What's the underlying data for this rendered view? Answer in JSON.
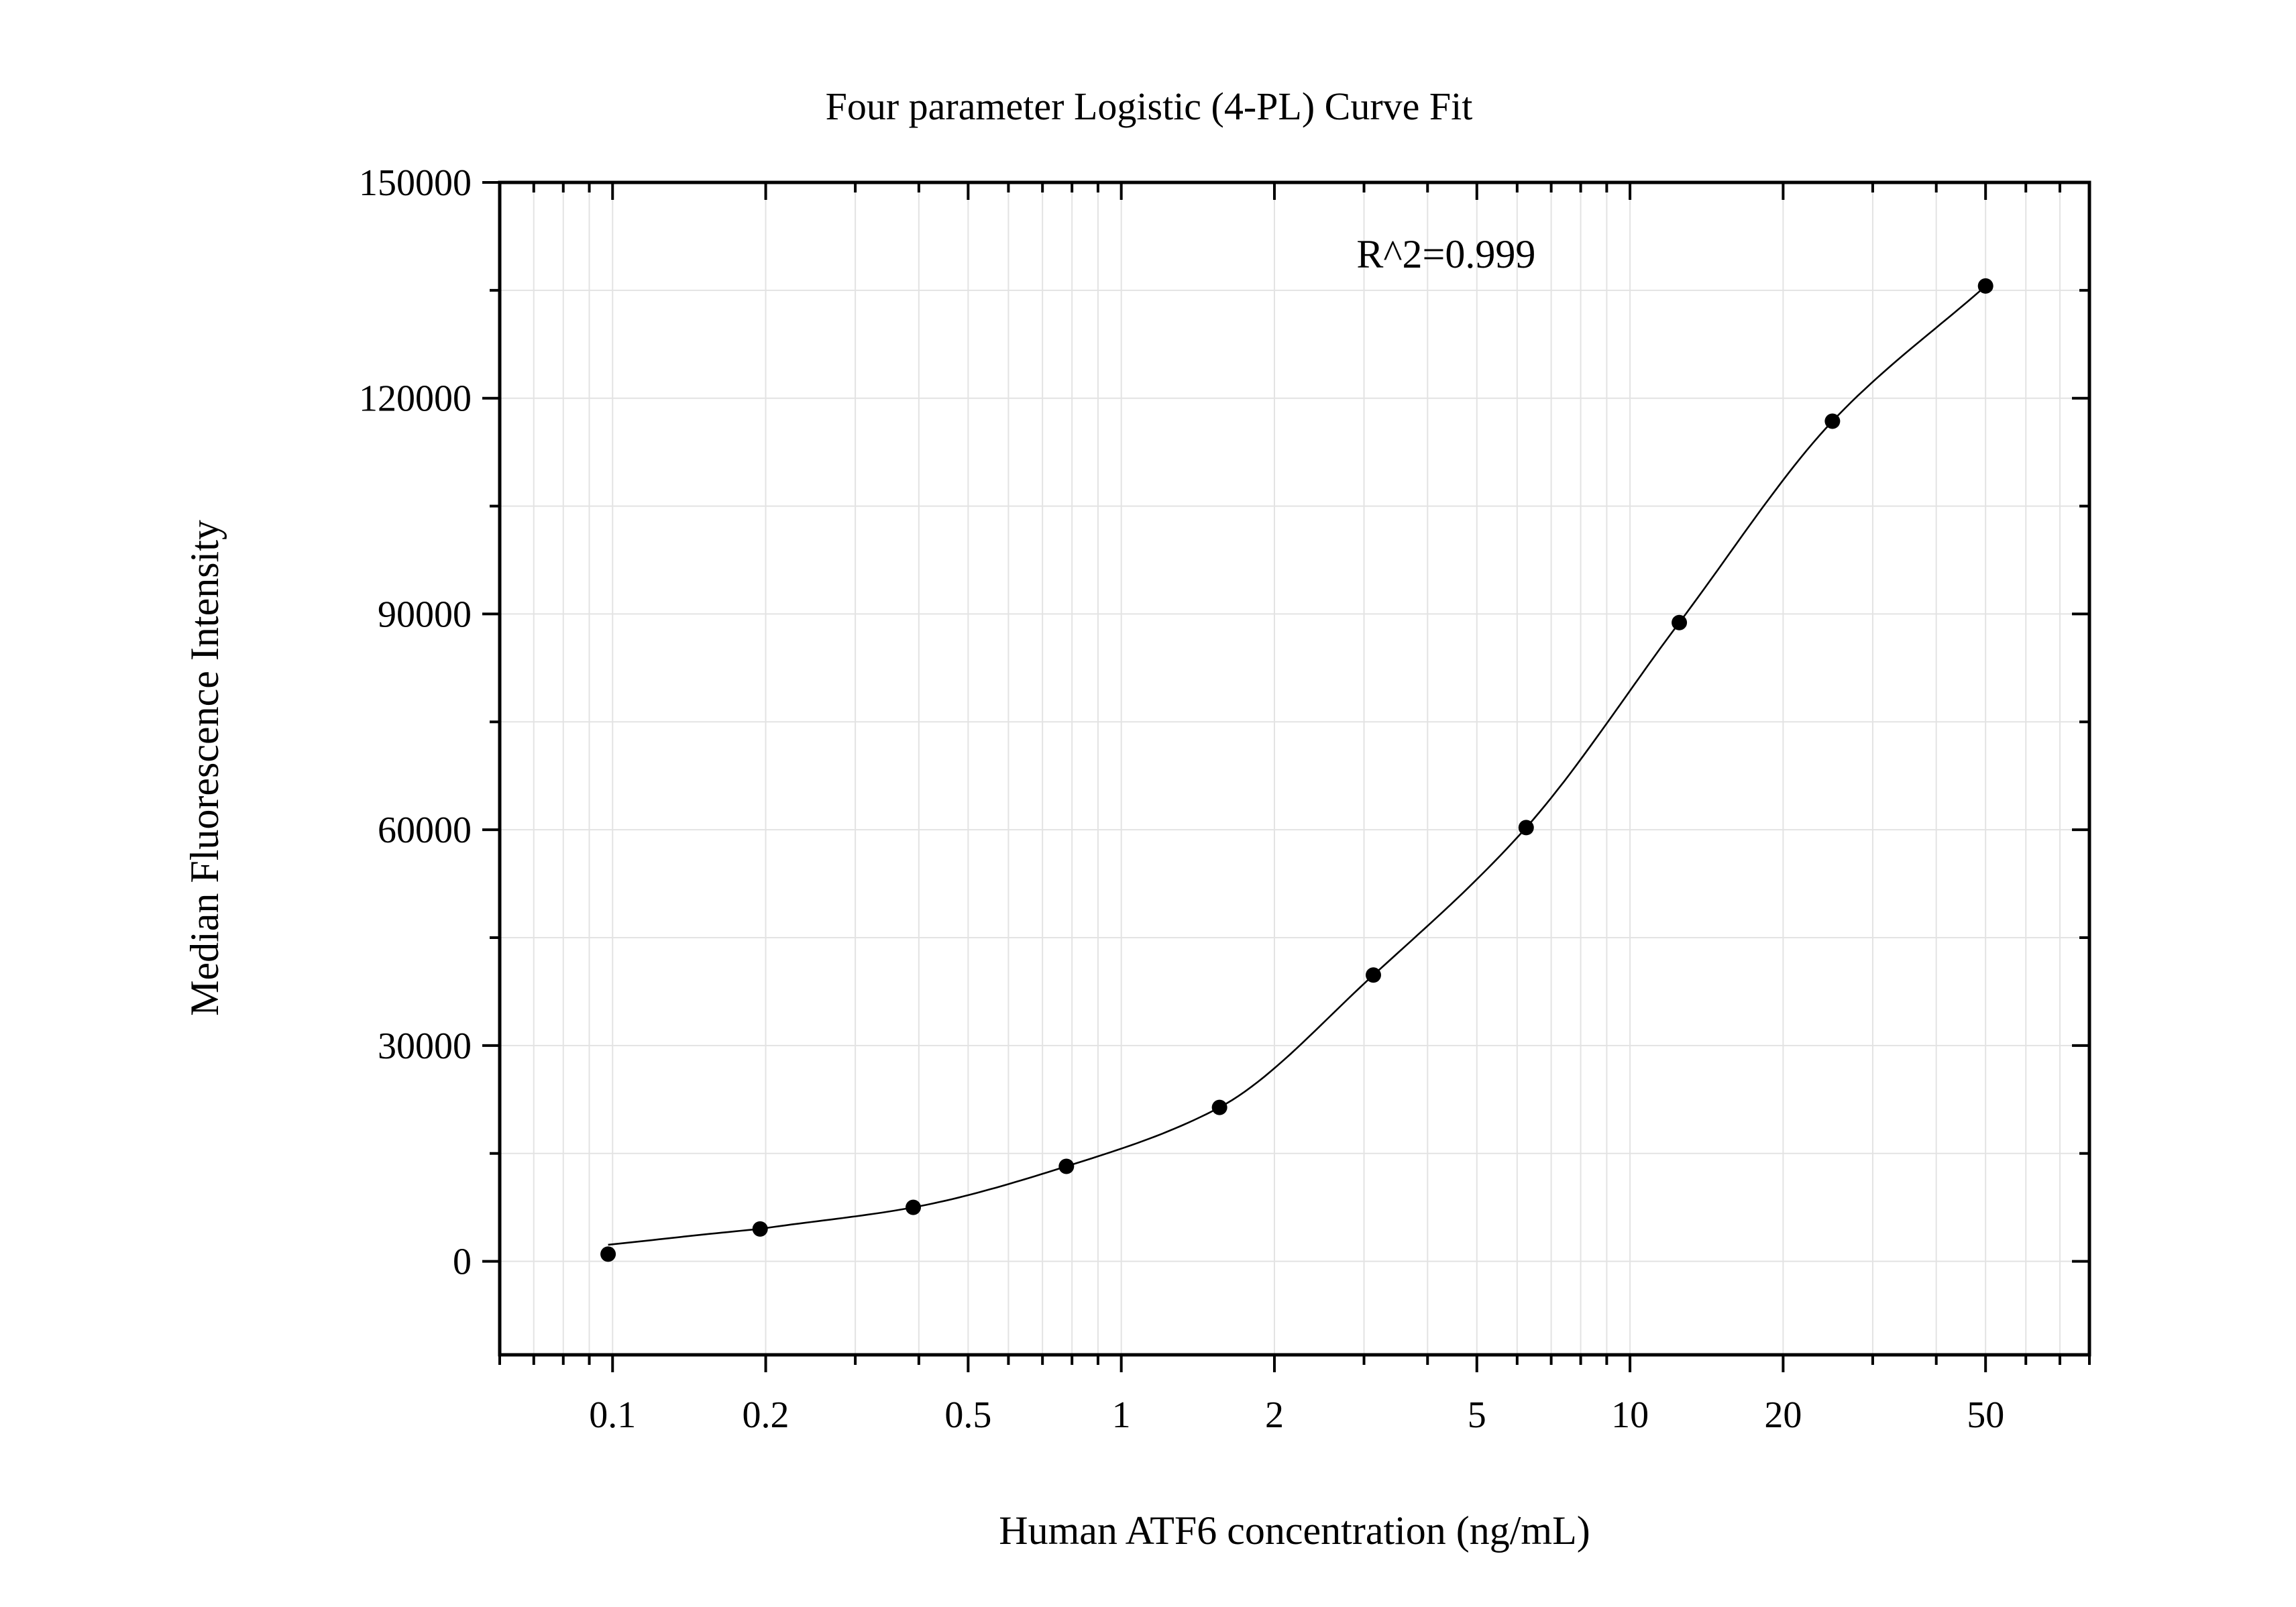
{
  "chart_data": {
    "type": "scatter",
    "title": "Four parameter Logistic (4-PL) Curve Fit",
    "xlabel": "Human ATF6 concentration (ng/mL)",
    "ylabel": "Median Fluorescence Intensity",
    "x_scale": "log",
    "xlim": [
      0.06,
      80
    ],
    "ylim": [
      -13000,
      150000
    ],
    "x_ticks": [
      {
        "value": 0.1,
        "label": "0.1"
      },
      {
        "value": 0.2,
        "label": "0.2"
      },
      {
        "value": 0.5,
        "label": "0.5"
      },
      {
        "value": 1,
        "label": "1"
      },
      {
        "value": 2,
        "label": "2"
      },
      {
        "value": 5,
        "label": "5"
      },
      {
        "value": 10,
        "label": "10"
      },
      {
        "value": 20,
        "label": "20"
      },
      {
        "value": 50,
        "label": "50"
      }
    ],
    "y_ticks": [
      {
        "value": 0,
        "label": "0"
      },
      {
        "value": 30000,
        "label": "30000"
      },
      {
        "value": 60000,
        "label": "60000"
      },
      {
        "value": 90000,
        "label": "90000"
      },
      {
        "value": 120000,
        "label": "120000"
      },
      {
        "value": 150000,
        "label": "150000"
      }
    ],
    "grid": true,
    "series": [
      {
        "points": [
          {
            "x": 0.098,
            "y": 1000
          },
          {
            "x": 0.195,
            "y": 4500
          },
          {
            "x": 0.39,
            "y": 7500
          },
          {
            "x": 0.78,
            "y": 13200
          },
          {
            "x": 1.56,
            "y": 21400
          },
          {
            "x": 3.13,
            "y": 39800
          },
          {
            "x": 6.25,
            "y": 60300
          },
          {
            "x": 12.5,
            "y": 88800
          },
          {
            "x": 25,
            "y": 116800
          },
          {
            "x": 50,
            "y": 135600
          }
        ],
        "marker": "circle",
        "color": "#000000"
      }
    ],
    "fit": {
      "model": "4-PL",
      "x_range": [
        0.098,
        50
      ],
      "color": "#000000"
    },
    "annotations": [
      {
        "text": "R^2=0.999",
        "x": 2.9,
        "y": 140000
      }
    ]
  }
}
